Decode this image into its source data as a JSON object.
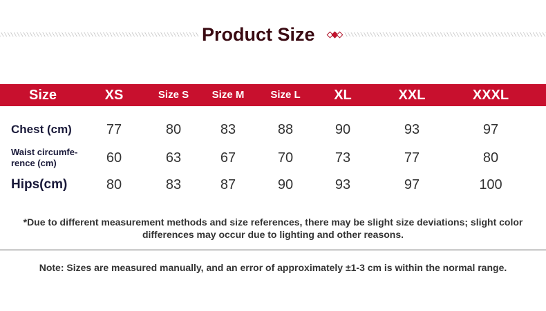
{
  "title": "Product Size",
  "colors": {
    "accent": "#c8102e",
    "title": "#3a0a12"
  },
  "table": {
    "headers": [
      "Size",
      "XS",
      "Size S",
      "Size M",
      "Size L",
      "XL",
      "XXL",
      "XXXL"
    ],
    "rows": [
      {
        "label": "Chest (cm)",
        "values": [
          "77",
          "80",
          "83",
          "88",
          "90",
          "93",
          "97"
        ]
      },
      {
        "label_line1": "Waist circumfe-",
        "label_line2": "rence (cm)",
        "values": [
          "60",
          "63",
          "67",
          "70",
          "73",
          "77",
          "80"
        ]
      },
      {
        "label": "Hips(cm)",
        "values": [
          "80",
          "83",
          "87",
          "90",
          "93",
          "97",
          "100"
        ]
      }
    ]
  },
  "note_line1": "*Due to different measurement methods and size references, there may be slight size deviations; slight color",
  "note_line2": "differences may occur due to lighting and other reasons.",
  "footer_note": "Note: Sizes are measured manually, and an error of approximately ±1-3 cm is within the normal range."
}
